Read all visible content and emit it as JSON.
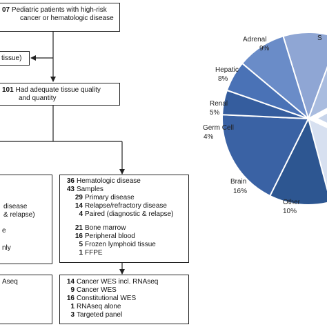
{
  "flowchart": {
    "top": {
      "count": "07",
      "line1": "Pediatric patients with high-risk",
      "line2": "cancer or hematologic disease"
    },
    "excluded": {
      "text": "tissue)"
    },
    "adequate": {
      "count": "101",
      "line1": "Had adequate tissue quality",
      "line2": "and quantity"
    },
    "left_details": {
      "line1": "disease",
      "line2": "& relapse)",
      "line3": "e",
      "line4": "nly"
    },
    "left_assays": {
      "line1": "Aseq"
    },
    "heme": {
      "rows": [
        {
          "count": "36",
          "label": "Hematologic  disease"
        },
        {
          "count": "43",
          "label": "Samples"
        },
        {
          "count": "29",
          "label": "Primary disease",
          "indent": true
        },
        {
          "count": "14",
          "label": "Relapse/refractory disease",
          "indent": true
        },
        {
          "count": "4",
          "label": "Paired (diagnostic & relapse)",
          "indent": true
        },
        {
          "count": "21",
          "label": "Bone marrow",
          "indent": true
        },
        {
          "count": "16",
          "label": "Peripheral blood",
          "indent": true
        },
        {
          "count": "5",
          "label": "Frozen lymphoid tissue",
          "indent": true
        },
        {
          "count": "1",
          "label": "FFPE",
          "indent": true
        }
      ]
    },
    "heme_assays": {
      "rows": [
        {
          "count": "14",
          "label": "Cancer WES incl. RNAseq"
        },
        {
          "count": "9",
          "label": "Cancer WES"
        },
        {
          "count": "16",
          "label": "Constitutional  WES"
        },
        {
          "count": "1",
          "label": "RNAseq alone"
        },
        {
          "count": "3",
          "label": "Targeted panel"
        }
      ]
    }
  },
  "chart_data": {
    "type": "pie",
    "colors": {
      "base": "#3d64a8",
      "dark": "#284f8e",
      "light": "#b7c8e6"
    },
    "slices": [
      {
        "label": "Adrenal",
        "value": 9,
        "pct": "9%",
        "color": "#8fa6d4"
      },
      {
        "label": "S",
        "value": 10,
        "pct": "",
        "color": "#a9bcdf"
      },
      {
        "label": "",
        "value": 13,
        "pct": "",
        "color": "#c7d4ea",
        "exploded": true
      },
      {
        "label": "",
        "value": 12,
        "pct": "",
        "color": "#d7e0f0"
      },
      {
        "label": "Other",
        "value": 10,
        "pct": "10%",
        "color": "#2d5691"
      },
      {
        "label": "Brain",
        "value": 16,
        "pct": "16%",
        "color": "#3a62a4"
      },
      {
        "label": "Germ Cell",
        "value": 4,
        "pct": "4%",
        "color": "#355d9e"
      },
      {
        "label": "Renal",
        "value": 5,
        "pct": "5%",
        "color": "#4a72b6"
      },
      {
        "label": "Hepatic",
        "value": 8,
        "pct": "8%",
        "color": "#6a8cc8"
      }
    ]
  }
}
